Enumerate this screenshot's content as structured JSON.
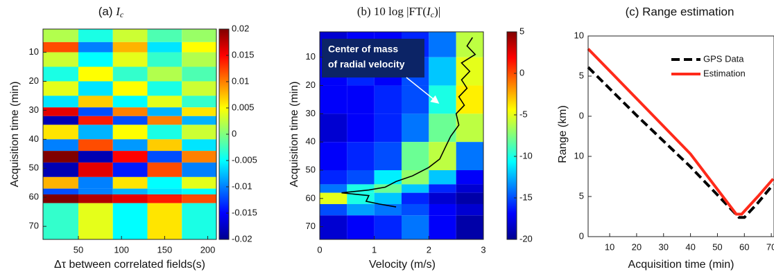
{
  "chart_data": [
    {
      "type": "heatmap",
      "title": {
        "prefix": "(a) ",
        "symbol": "I",
        "subscript": "c"
      },
      "xlabel": "Δτ between correlated fields(s)",
      "ylabel": "Acquisition time (min)",
      "xlim": [
        9,
        210
      ],
      "xticks": [
        50,
        100,
        150,
        200
      ],
      "ylim": [
        2,
        74.5
      ],
      "yticks": [
        10,
        20,
        30,
        40,
        50,
        60,
        70
      ],
      "y_reversed": true,
      "x_edges": [
        9,
        50,
        90,
        130,
        170,
        210
      ],
      "y_edges": [
        2,
        6.5,
        10,
        15,
        20,
        25,
        29,
        32,
        35,
        40,
        44,
        48,
        53,
        57,
        59,
        62,
        74.5
      ],
      "z": [
        [
          0.002,
          -0.004,
          0.003,
          -0.002,
          0.001
        ],
        [
          0.012,
          -0.01,
          0.008,
          -0.006,
          0.005
        ],
        [
          0.003,
          -0.005,
          0.004,
          -0.003,
          0.002
        ],
        [
          -0.004,
          0.005,
          -0.003,
          0.002,
          -0.002
        ],
        [
          0.004,
          -0.006,
          0.005,
          -0.004,
          0.003
        ],
        [
          -0.006,
          0.007,
          -0.005,
          0.004,
          -0.003
        ],
        [
          0.016,
          -0.012,
          0.01,
          -0.008,
          0.006
        ],
        [
          -0.018,
          0.014,
          -0.012,
          0.01,
          -0.008
        ],
        [
          0.006,
          -0.008,
          0.005,
          -0.004,
          0.003
        ],
        [
          -0.01,
          0.012,
          -0.009,
          0.007,
          -0.006
        ],
        [
          0.02,
          -0.018,
          0.015,
          -0.012,
          0.01
        ],
        [
          -0.018,
          0.016,
          -0.014,
          0.012,
          -0.01
        ],
        [
          0.008,
          -0.01,
          0.006,
          -0.005,
          0.004
        ],
        [
          -0.012,
          -0.01,
          -0.008,
          -0.006,
          -0.005
        ],
        [
          0.02,
          0.018,
          0.016,
          0.014,
          0.012
        ],
        [
          -0.003,
          0.004,
          -0.005,
          0.006,
          -0.004
        ]
      ],
      "clim": [
        -0.02,
        0.02
      ],
      "cticks": [
        0.02,
        0.015,
        0.01,
        0.005,
        0,
        -0.005,
        -0.01,
        -0.015,
        -0.02
      ],
      "colormap": "jet"
    },
    {
      "type": "heatmap",
      "title": {
        "prefix": "(b) 10 log |FT(",
        "symbol": "I",
        "subscript": "c",
        "suffix": ")|"
      },
      "xlabel": "Velocity (m/s)",
      "ylabel": "Acquisition time (min)",
      "xlim": [
        0,
        3
      ],
      "xticks": [
        0,
        1,
        2,
        3
      ],
      "ylim": [
        1,
        74.5
      ],
      "yticks": [
        10,
        20,
        30,
        40,
        50,
        60,
        70
      ],
      "y_reversed": true,
      "x_edges": [
        0,
        0.5,
        1,
        1.5,
        2,
        2.5,
        3
      ],
      "y_edges": [
        1,
        10,
        20,
        30,
        40,
        50,
        55,
        58,
        62,
        66,
        74.5
      ],
      "z": [
        [
          -18,
          -17,
          -17,
          -16,
          -14,
          -6
        ],
        [
          -17,
          -16,
          -17,
          -15,
          -12,
          -5
        ],
        [
          -17,
          -17,
          -16,
          -15,
          -10,
          -4
        ],
        [
          -18,
          -17,
          -16,
          -14,
          -8,
          -6
        ],
        [
          -17,
          -16,
          -15,
          -8,
          -6,
          -14
        ],
        [
          -16,
          -15,
          -11,
          -7,
          -12,
          -17
        ],
        [
          -14,
          -10,
          -8,
          -12,
          -16,
          -18
        ],
        [
          -5,
          -10,
          -12,
          -16,
          -18,
          -19
        ],
        [
          -15,
          -13,
          -14,
          -15,
          -17,
          -18
        ],
        [
          -18,
          -17,
          -16,
          -14,
          -17,
          -19
        ]
      ],
      "clim": [
        -20,
        5
      ],
      "cticks": [
        5,
        0,
        -5,
        -10,
        -15,
        -20
      ],
      "colormap": "jet",
      "line": {
        "color": "#000000",
        "x": [
          2.8,
          2.7,
          2.85,
          2.6,
          2.75,
          2.6,
          2.7,
          2.55,
          2.65,
          2.5,
          2.55,
          2.4,
          2.3,
          2.2,
          2.0,
          1.7,
          1.4,
          1.2,
          0.9,
          0.4,
          0.9,
          0.85,
          1.1,
          1.4
        ],
        "y": [
          3,
          6,
          9,
          12,
          15,
          18,
          21,
          24,
          27,
          30,
          34,
          38,
          42,
          46,
          49,
          52,
          54,
          56,
          57,
          58,
          59,
          61,
          62,
          63
        ]
      },
      "annotation": {
        "lines": [
          "Center of mass",
          "of radial velocity"
        ]
      }
    },
    {
      "type": "line",
      "title": "(c) Range estimation",
      "xlabel": "Acquisition time (min)",
      "ylabel": "Range (km)",
      "xlim": [
        2,
        71
      ],
      "xticks": [
        10,
        20,
        30,
        40,
        50,
        60,
        70
      ],
      "ylim": [
        0,
        25
      ],
      "yticks": [
        {
          "value": 25,
          "label": "10"
        },
        {
          "value": 20,
          "label": "5"
        },
        {
          "value": 15,
          "label": "0"
        },
        10,
        5,
        0
      ],
      "series": [
        {
          "name": "GPS Data",
          "color": "#000000",
          "dashed": true,
          "x": [
            2,
            20,
            40,
            58,
            60,
            65,
            70.7
          ],
          "values": [
            21.1,
            15.1,
            8.7,
            2.4,
            2.4,
            4.2,
            6.5
          ]
        },
        {
          "name": "Estimation",
          "color": "#ff2a1a",
          "dashed": false,
          "x": [
            2,
            20,
            40,
            57,
            59,
            65,
            70.7
          ],
          "values": [
            23.4,
            17.2,
            10.3,
            2.8,
            2.8,
            5.0,
            7.2
          ]
        }
      ],
      "legend": "upper right"
    }
  ]
}
